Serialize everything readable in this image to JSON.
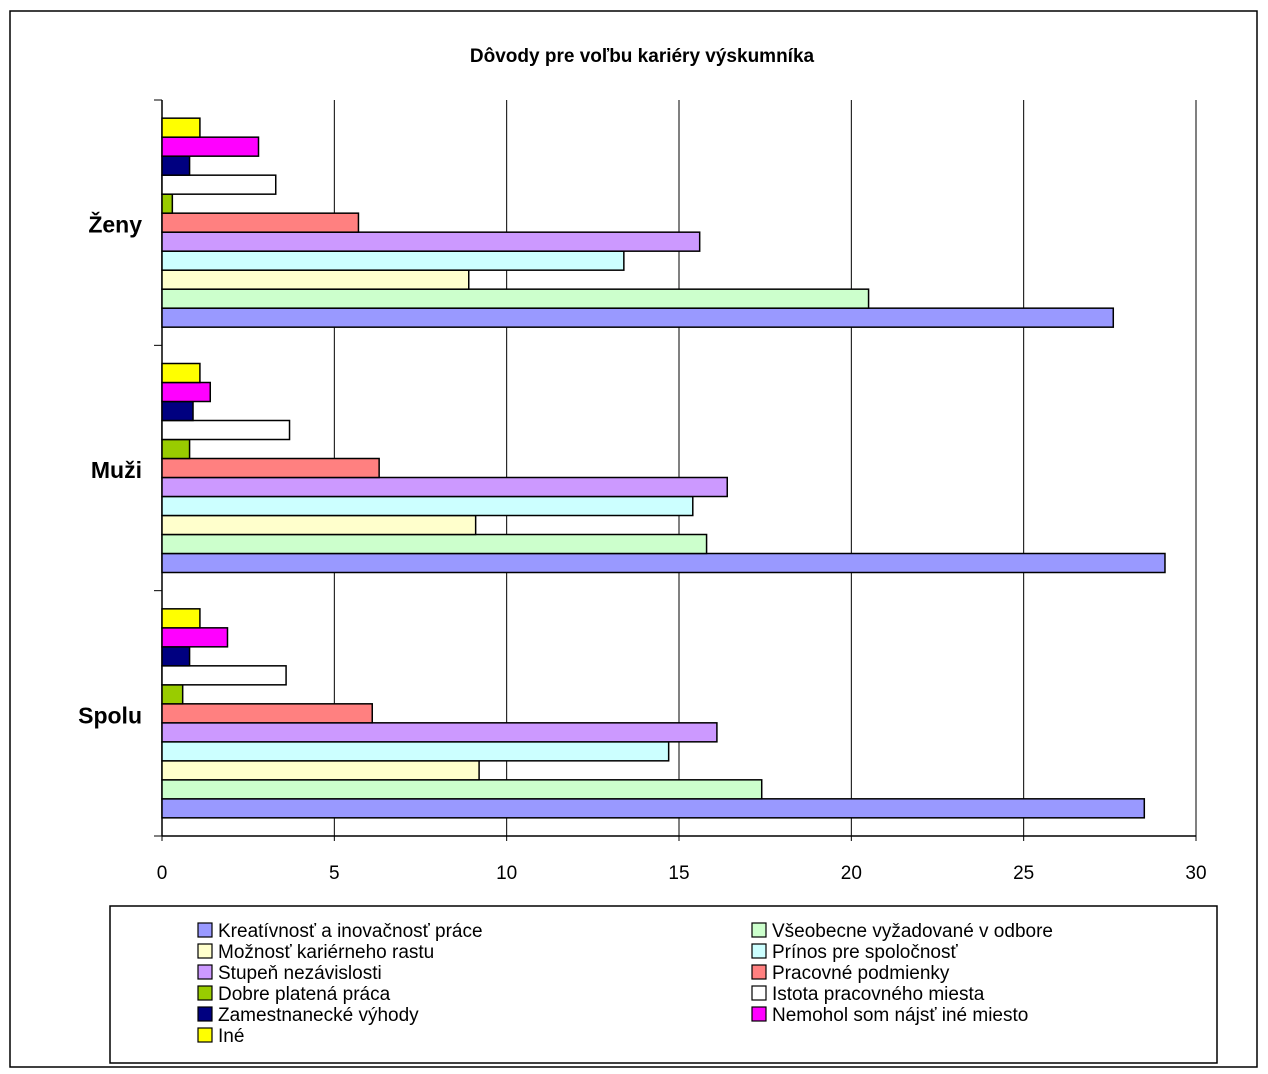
{
  "chart_data": {
    "type": "bar",
    "orientation": "horizontal",
    "title": "Dôvody pre voľbu kariéry výskumníka",
    "categories": [
      "Spolu",
      "Muži",
      "Ženy"
    ],
    "xlim": [
      0,
      30
    ],
    "x_ticks": [
      "0",
      "5",
      "10",
      "15",
      "20",
      "25",
      "30"
    ],
    "grid": true,
    "legend_position": "bottom",
    "series": [
      {
        "name": "Kreatívnosť a inovačnosť práce",
        "color": "#9999ff",
        "values": [
          28.5,
          29.1,
          27.6
        ]
      },
      {
        "name": "Všeobecne vyžadované v odbore",
        "color": "#ccffcc",
        "values": [
          17.4,
          15.8,
          20.5
        ]
      },
      {
        "name": "Možnosť kariérneho rastu",
        "color": "#ffffcc",
        "values": [
          9.2,
          9.1,
          8.9
        ]
      },
      {
        "name": "Prínos pre spoločnosť",
        "color": "#ccffff",
        "values": [
          14.7,
          15.4,
          13.4
        ]
      },
      {
        "name": "Stupeň nezávislosti",
        "color": "#cc99ff",
        "values": [
          16.1,
          16.4,
          15.6
        ]
      },
      {
        "name": "Pracovné podmienky",
        "color": "#ff8080",
        "values": [
          6.1,
          6.3,
          5.7
        ]
      },
      {
        "name": "Dobre platená práca",
        "color": "#99cc00",
        "values": [
          0.6,
          0.8,
          0.3
        ]
      },
      {
        "name": "Istota pracovného miesta",
        "color": "#ffffff",
        "values": [
          3.6,
          3.7,
          3.3
        ]
      },
      {
        "name": "Zamestnanecké výhody",
        "color": "#000080",
        "values": [
          0.8,
          0.9,
          0.8
        ]
      },
      {
        "name": "Nemohol som nájsť iné miesto",
        "color": "#ff00ff",
        "values": [
          1.9,
          1.4,
          2.8
        ]
      },
      {
        "name": "Iné",
        "color": "#ffff00",
        "values": [
          1.1,
          1.1,
          1.1
        ]
      }
    ]
  }
}
